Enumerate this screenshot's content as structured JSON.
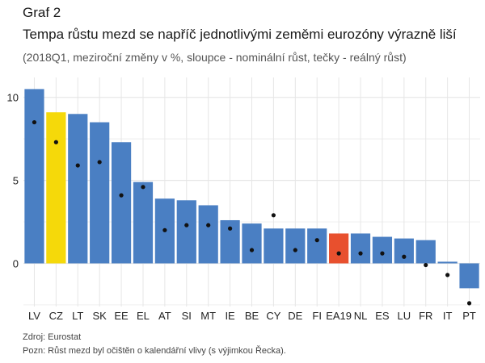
{
  "header": {
    "label": "Graf 2",
    "title": "Tempa růstu mezd se napříč jednotlivými zeměmi eurozóny výrazně liší",
    "subtitle": "(2018Q1, meziroční změny v %, sloupce - nominální růst, tečky - reálný růst)"
  },
  "footer": {
    "source": "Zdroj: Eurostat",
    "note": "Pozn: Růst mezd byl očištěn o kalendářní vlivy (s výjimkou Řecka)."
  },
  "chart_data": {
    "type": "bar",
    "categories": [
      "LV",
      "CZ",
      "LT",
      "SK",
      "EE",
      "EL",
      "AT",
      "SI",
      "MT",
      "IE",
      "BE",
      "CY",
      "DE",
      "FI",
      "EA19",
      "NL",
      "ES",
      "LU",
      "FR",
      "IT",
      "PT"
    ],
    "series": [
      {
        "values": [
          10.5,
          9.1,
          9.0,
          8.5,
          7.3,
          4.9,
          3.9,
          3.8,
          3.5,
          2.6,
          2.4,
          2.1,
          2.1,
          2.1,
          1.8,
          1.8,
          1.6,
          1.5,
          1.4,
          0.1,
          -1.5
        ]
      },
      {
        "values": [
          8.5,
          7.3,
          5.9,
          6.1,
          4.1,
          4.6,
          2.0,
          2.3,
          2.3,
          2.1,
          0.8,
          2.9,
          0.8,
          1.4,
          0.6,
          0.6,
          0.6,
          0.4,
          -0.1,
          -0.7,
          -2.4
        ]
      }
    ],
    "ylim": [
      -2.6,
      11.2
    ],
    "yticks": [
      0,
      5,
      10
    ],
    "grid": true,
    "colors": {
      "default": "#4a7fc3",
      "CZ": "#f5d90a",
      "EA19": "#e8502e",
      "dots": "#111111",
      "grid": "#e6e6e6"
    }
  }
}
